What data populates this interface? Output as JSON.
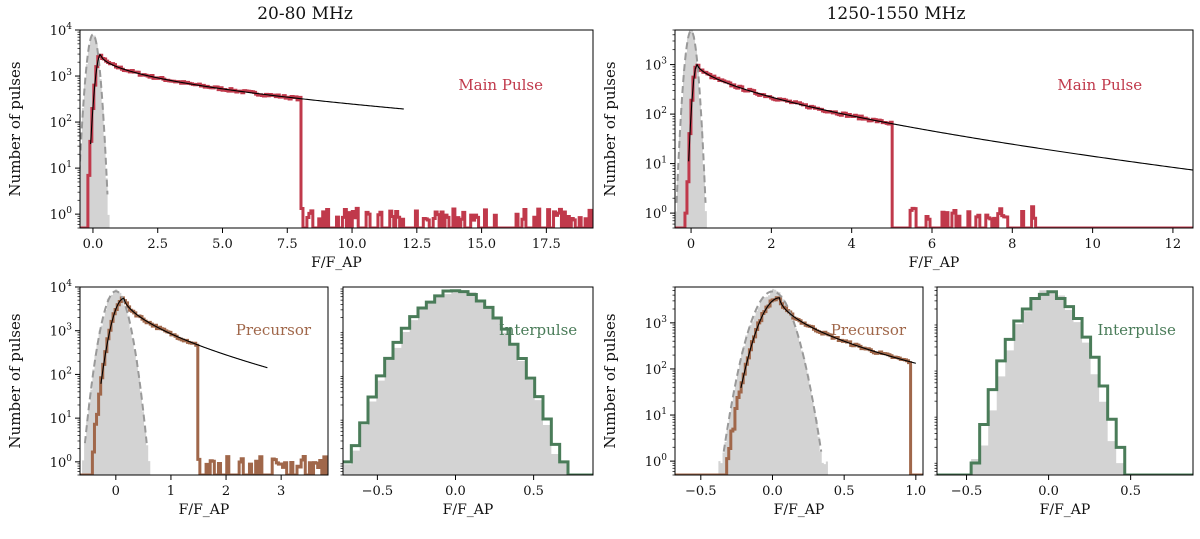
{
  "figure": {
    "left_title": "20-80 MHz",
    "right_title": "1250-1550 MHz",
    "ylabel": "Number of pulses",
    "xlabel": "F/F_AP"
  },
  "colors": {
    "main": "#c0394b",
    "precursor": "#a0674a",
    "interpulse": "#4a7c59",
    "noise": "#d3d3d3",
    "noise_fit": "#999999",
    "fit": "#000000"
  },
  "chart_data": [
    {
      "id": "lofar-main",
      "type": "histogram",
      "label": "Main Pulse",
      "label_color": "main",
      "xlabel": "F/F_AP",
      "ylabel": "Number of pulses",
      "xlim": [
        -0.5,
        19.3
      ],
      "ylim": [
        0.5,
        10000
      ],
      "xticks": [
        0.0,
        2.5,
        5.0,
        7.5,
        10.0,
        12.5,
        15.0,
        17.5
      ],
      "xtick_labels": [
        "0.0",
        "2.5",
        "5.0",
        "7.5",
        "10.0",
        "12.5",
        "15.0",
        "17.5"
      ],
      "yticks": [
        1,
        10,
        100,
        1000,
        10000
      ],
      "ytick_labels": [
        "10^0",
        "10^1",
        "10^2",
        "10^3",
        "10^4"
      ],
      "noise": {
        "center": 0.0,
        "peak": 8000,
        "sigma": 0.14
      },
      "signal": {
        "peak_x": 0.3,
        "peak": 3000,
        "rise": 0.13,
        "scale": 1.55,
        "slope": 0.5,
        "xmax": 12.0
      },
      "tail_sparse_from": 8.0,
      "tail_max": 19.2
    },
    {
      "id": "lband-main",
      "type": "histogram",
      "label": "Main Pulse",
      "label_color": "main",
      "xlabel": "F/F_AP",
      "ylabel": "Number of pulses",
      "xlim": [
        -0.4,
        12.5
      ],
      "ylim": [
        0.5,
        5000
      ],
      "xticks": [
        0,
        2,
        4,
        6,
        8,
        10,
        12
      ],
      "xtick_labels": [
        "0",
        "2",
        "4",
        "6",
        "8",
        "10",
        "12"
      ],
      "yticks": [
        1,
        10,
        100,
        1000
      ],
      "ytick_labels": [
        "10^0",
        "10^1",
        "10^2",
        "10^3"
      ],
      "noise": {
        "center": 0.0,
        "peak": 4800,
        "sigma": 0.09
      },
      "signal": {
        "peak_x": 0.15,
        "peak": 1000,
        "rise": 0.07,
        "scale": 0.95,
        "slope": 0.62,
        "xmax": 12.5
      },
      "tail_sparse_from": 5.0,
      "tail_max": 8.6
    },
    {
      "id": "lofar-precursor",
      "type": "histogram",
      "label": "Precursor",
      "label_color": "precursor",
      "xlabel": "F/F_AP",
      "ylabel": "Number of pulses",
      "xlim": [
        -0.65,
        3.85
      ],
      "ylim": [
        0.5,
        10000
      ],
      "xticks": [
        0,
        1,
        2,
        3
      ],
      "xtick_labels": [
        "0",
        "1",
        "2",
        "3"
      ],
      "yticks": [
        1,
        10,
        100,
        1000,
        10000
      ],
      "ytick_labels": [
        "10^0",
        "10^1",
        "10^2",
        "10^3",
        "10^4"
      ],
      "noise": {
        "center": 0.0,
        "peak": 8000,
        "sigma": 0.14
      },
      "signal": {
        "peak_x": 0.15,
        "peak": 5500,
        "rise": 0.14,
        "scale": 0.3,
        "slope": 0.6,
        "xmax": 2.75
      },
      "tail_sparse_from": 1.5,
      "tail_max": 3.8
    },
    {
      "id": "lofar-interpulse",
      "type": "histogram",
      "label": "Interpulse",
      "label_color": "interpulse",
      "xlabel": "F/F_AP",
      "ylabel": "",
      "xlim": [
        -0.72,
        0.88
      ],
      "ylim": [
        0.5,
        10000
      ],
      "xticks": [
        -0.5,
        0.0,
        0.5
      ],
      "xtick_labels": [
        "−0.5",
        "0.0",
        "0.5"
      ],
      "yticks": [],
      "ytick_labels": [],
      "noise": {
        "center": 0.0,
        "peak": 8500,
        "sigma": 0.155
      },
      "signal": {
        "center": 0.0,
        "peak": 8000,
        "sigma": 0.16
      },
      "tail_max": 0.82
    },
    {
      "id": "lband-precursor",
      "type": "histogram",
      "label": "Precursor",
      "label_color": "precursor",
      "xlabel": "F/F_AP",
      "ylabel": "Number of pulses",
      "xlim": [
        -0.68,
        1.05
      ],
      "ylim": [
        0.5,
        6000
      ],
      "xticks": [
        -0.5,
        0.0,
        0.5,
        1.0
      ],
      "xtick_labels": [
        "−0.5",
        "0.0",
        "0.5",
        "1.0"
      ],
      "yticks": [
        1,
        10,
        100,
        1000
      ],
      "ytick_labels": [
        "10^0",
        "10^1",
        "10^2",
        "10^3"
      ],
      "noise": {
        "center": 0.0,
        "peak": 4800,
        "sigma": 0.085
      },
      "signal": {
        "peak_x": 0.05,
        "peak": 3500,
        "rise": 0.09,
        "scale": 0.11,
        "slope": 0.55,
        "xmax": 1.0
      },
      "tail_max": 0.97
    },
    {
      "id": "lband-interpulse",
      "type": "histogram",
      "label": "Interpulse",
      "label_color": "interpulse",
      "xlabel": "F/F_AP",
      "ylabel": "",
      "xlim": [
        -0.68,
        0.88
      ],
      "ylim": [
        0.5,
        6000
      ],
      "xticks": [
        -0.5,
        0.0,
        0.5
      ],
      "xtick_labels": [
        "−0.5",
        "0.0",
        "0.5"
      ],
      "yticks": [],
      "ytick_labels": [],
      "noise": {
        "center": 0.0,
        "peak": 4800,
        "sigma": 0.1
      },
      "signal": {
        "center": 0.0,
        "peak": 4500,
        "sigma": 0.11
      },
      "tail_max": 0.78
    }
  ]
}
